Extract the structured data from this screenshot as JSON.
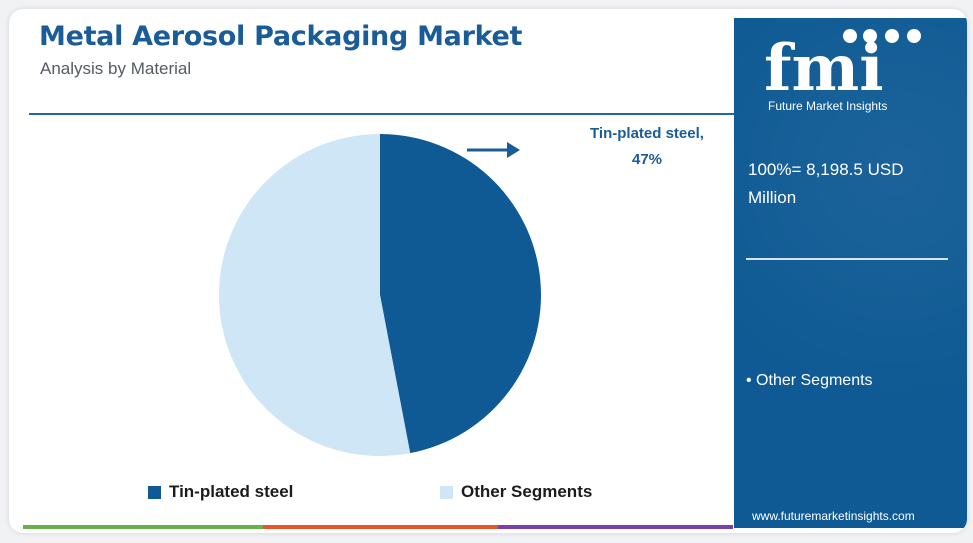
{
  "header": {
    "title": "Metal Aerosol Packaging Market",
    "subtitle": "Analysis by Material"
  },
  "chart_data": {
    "type": "pie",
    "categories": [
      "Tin-plated steel",
      "Other Segments"
    ],
    "values": [
      47,
      53
    ],
    "colors": [
      "#0f5a94",
      "#cfe6f6"
    ],
    "annotations": [
      {
        "text_line1": "Tin-plated steel,",
        "text_line2": "47%"
      }
    ],
    "legend": "bottom"
  },
  "legend": {
    "items": [
      {
        "label": "Tin-plated steel",
        "color": "#0f5a94"
      },
      {
        "label": "Other Segments",
        "color": "#cfe6f6"
      }
    ]
  },
  "side_panel": {
    "logo_text": "fmi",
    "brand_name": "Future Market Insights",
    "total_line1": "100%= 8,198.5 USD",
    "total_line2": "Million",
    "other_note": "• Other Segments",
    "website": "www.futuremarketinsights.com",
    "background_color": "#0f5a94"
  },
  "bottom_bar_colors": [
    "#6ab04c",
    "#e8552d",
    "#7a3fa8"
  ]
}
